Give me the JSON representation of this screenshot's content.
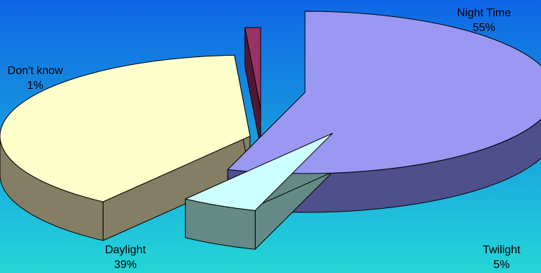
{
  "chart_data": {
    "type": "pie",
    "title": "",
    "slices": [
      {
        "label": "Night Time",
        "value": 55,
        "display": "55%",
        "color": "#9b98f4",
        "side": "#4f4f8c"
      },
      {
        "label": "Twilight",
        "value": 5,
        "display": "5%",
        "color": "#ccffff",
        "side": "#658a86"
      },
      {
        "label": "Daylight",
        "value": 39,
        "display": "39%",
        "color": "#ffffcc",
        "side": "#847e65"
      },
      {
        "label": "Don't know",
        "value": 1,
        "display": "1%",
        "color": "#993366",
        "side": "#521833"
      }
    ],
    "style": "3d-exploded",
    "legend": "none"
  }
}
